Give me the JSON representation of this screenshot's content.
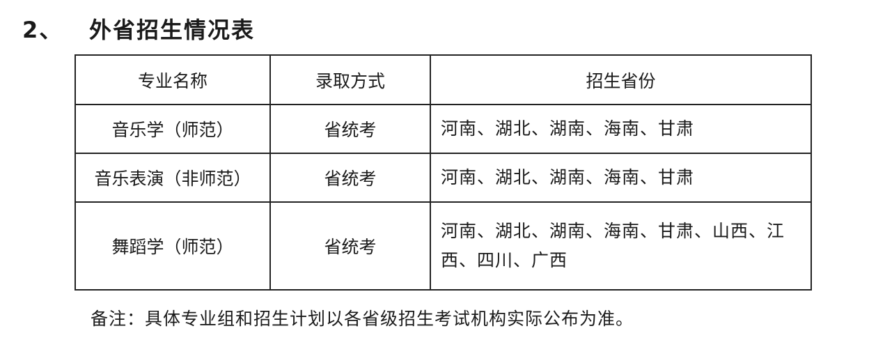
{
  "title": {
    "number": "2、",
    "text": "外省招生情况表"
  },
  "table": {
    "headers": [
      "专业名称",
      "录取方式",
      "招生省份"
    ],
    "rows": [
      {
        "major": "音乐学（师范）",
        "method": "省统考",
        "provinces": "河南、湖北、湖南、海南、甘肃"
      },
      {
        "major": "音乐表演（非师范）",
        "method": "省统考",
        "provinces": "河南、湖北、湖南、海南、甘肃"
      },
      {
        "major": "舞蹈学（师范）",
        "method": "省统考",
        "provinces": "河南、湖北、湖南、海南、甘肃、山西、江西、四川、广西"
      }
    ]
  },
  "note": "备注：具体专业组和招生计划以各省级招生考试机构实际公布为准。"
}
